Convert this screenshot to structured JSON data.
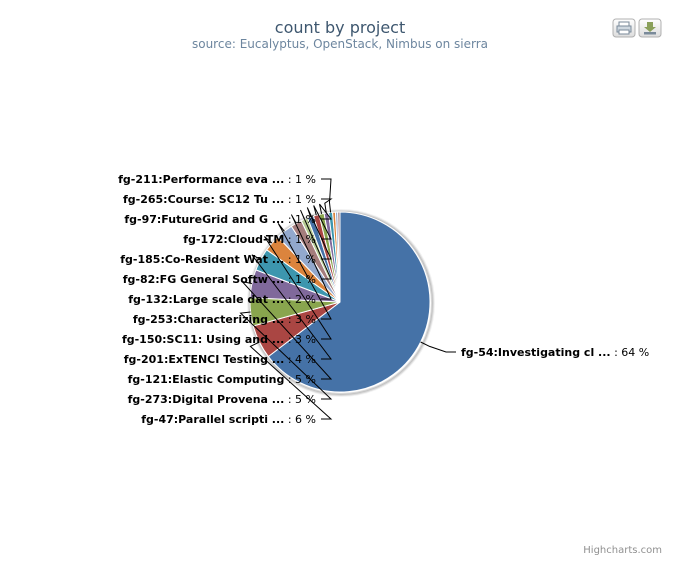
{
  "chart_data": {
    "type": "pie",
    "title": "count by project",
    "subtitle": "source: Eucalyptus, OpenStack, Nimbus on sierra",
    "slices": [
      {
        "label": "fg-54:Investigating cl ...",
        "value_text": "64 %",
        "value": 64,
        "color": "#4572a7"
      },
      {
        "label": "fg-47:Parallel scripti ...",
        "value_text": "6 %",
        "value": 6,
        "color": "#aa4643"
      },
      {
        "label": "fg-273:Digital Provena ...",
        "value_text": "5 %",
        "value": 5,
        "color": "#89a54e"
      },
      {
        "label": "fg-121:Elastic Computing",
        "value_text": "5 %",
        "value": 5,
        "color": "#80699b"
      },
      {
        "label": "fg-201:ExTENCI Testing ...",
        "value_text": "4 %",
        "value": 4,
        "color": "#3d96ae"
      },
      {
        "label": "fg-150:SC11: Using and ...",
        "value_text": "3 %",
        "value": 3,
        "color": "#db843d"
      },
      {
        "label": "fg-253:Characterizing ...",
        "value_text": "3 %",
        "value": 3,
        "color": "#92a8cd"
      },
      {
        "label": "fg-132:Large scale dat ...",
        "value_text": "2 %",
        "value": 2,
        "color": "#a47d7c"
      },
      {
        "label": "fg-82:FG General Softw ...",
        "value_text": "1 %",
        "value": 1.2,
        "color": "#b5ca92"
      },
      {
        "label": "fg-185:Co-Resident Wat ...",
        "value_text": "1 %",
        "value": 1.1,
        "color": "#4572a7"
      },
      {
        "label": "fg-172:Cloud-TM",
        "value_text": "1 %",
        "value": 1.0,
        "color": "#aa4643"
      },
      {
        "label": "fg-97:FutureGrid and G ...",
        "value_text": "1 %",
        "value": 0.9,
        "color": "#89a54e"
      },
      {
        "label": "fg-265:Course: SC12 Tu ...",
        "value_text": "1 %",
        "value": 0.8,
        "color": "#80699b"
      },
      {
        "label": "fg-211:Performance eva ...",
        "value_text": "1 %",
        "value": 0.7,
        "color": "#3d96ae"
      },
      {
        "label": "",
        "value_text": "",
        "value": 0.5,
        "color": "#db843d"
      },
      {
        "label": "",
        "value_text": "",
        "value": 0.4,
        "color": "#92a8cd"
      },
      {
        "label": "",
        "value_text": "",
        "value": 0.4,
        "color": "#a47d7c"
      }
    ],
    "legend": "none"
  },
  "credits": "Highcharts.com",
  "toolbar": {
    "print_icon": "printer-icon",
    "export_icon": "download-icon"
  }
}
